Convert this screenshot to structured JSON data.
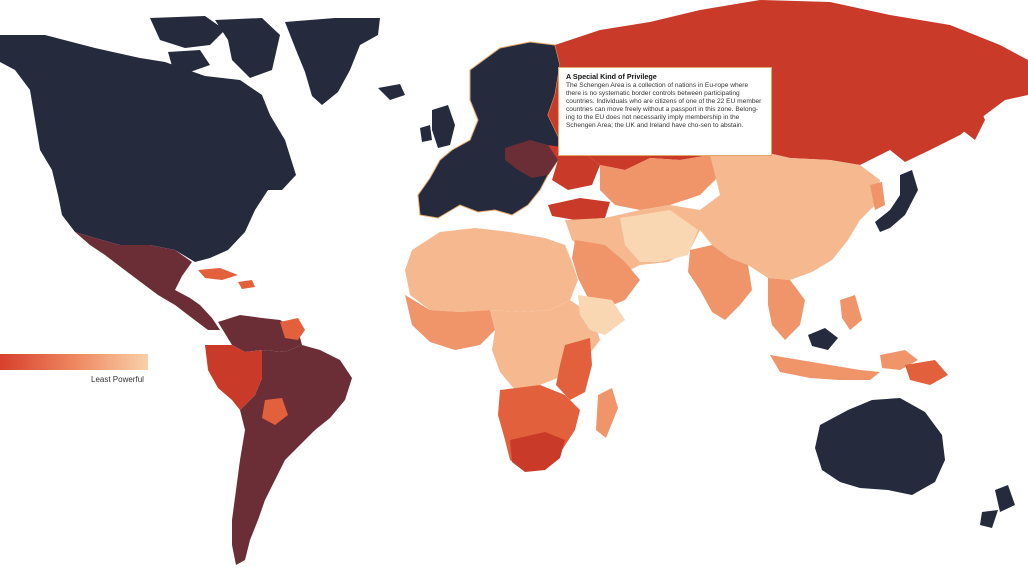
{
  "info_box": {
    "title": "A Special Kind of Privilege",
    "text": "The Schengen Area is a collection of nations in Eu-rope where there is no systematic border controls between participating countries. Individuals who are citizens of one of the 22 EU member countries can move freely without a passport in this zone. Belong-ing to the EU does not necessarily imply membership in the Schengen Area; the UK and Ireland have cho-sen to abstain."
  },
  "legend": {
    "least_label": "Least Powerful",
    "gradient_colors": [
      "#d7402c",
      "#ef8660",
      "#f9d0a8"
    ]
  },
  "colors": {
    "most_powerful": "#252a3d",
    "high": "#6b2e36",
    "medium_high": "#c93a29",
    "medium": "#e3603c",
    "medium_low": "#f0946a",
    "low": "#f6b98f",
    "least_powerful": "#fad7b3",
    "schengen_outline": "#e4a86a"
  }
}
